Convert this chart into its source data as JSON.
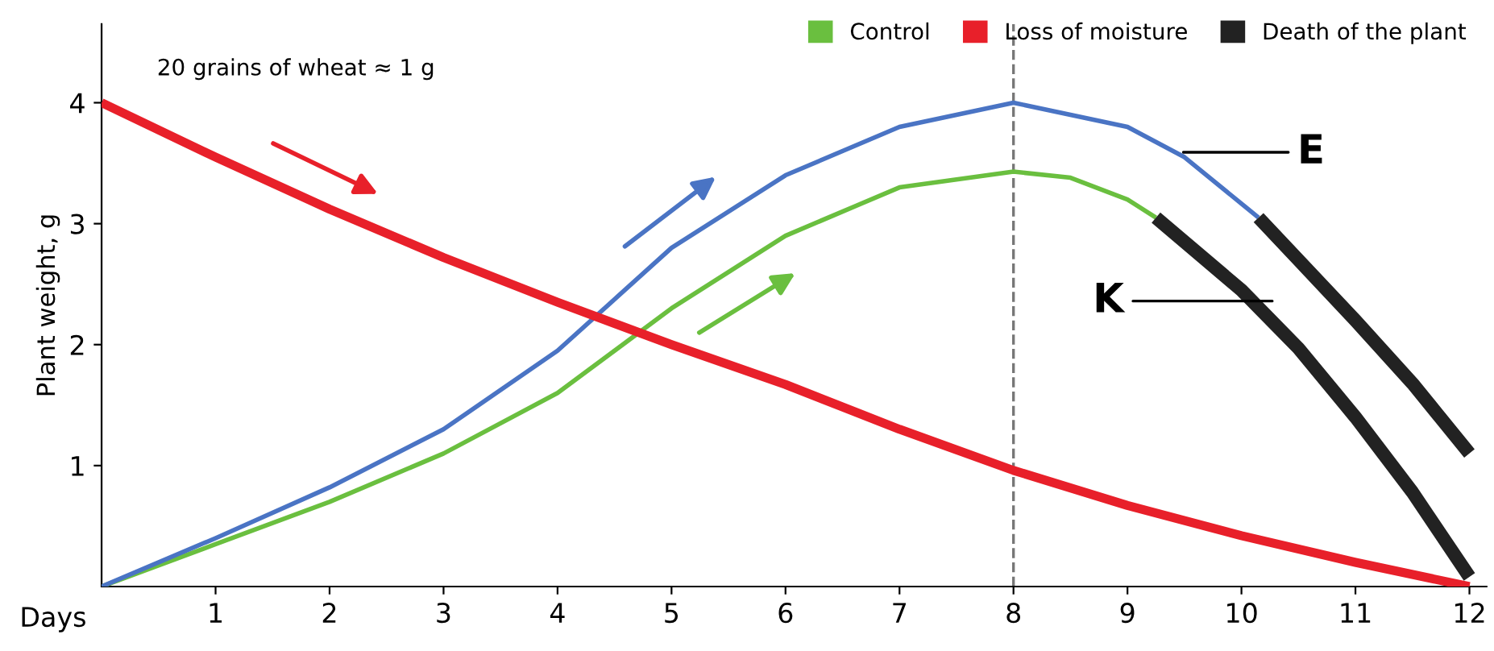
{
  "chart_data": {
    "type": "line",
    "xlabel": "Days",
    "ylabel": "Plant weight, g",
    "annotations": [
      "20 grains of wheat ≈ 1 g",
      {
        "text": "E",
        "x": 9.49,
        "y": 3.59
      },
      {
        "text": "K",
        "x": 10.27,
        "y": 2.36
      }
    ],
    "series": [
      {
        "name": "Control",
        "color": "#6abf3f",
        "x": [
          0,
          1,
          2,
          3,
          4,
          5,
          6,
          7,
          8,
          8.5,
          9,
          9.25
        ],
        "values": [
          0,
          0.35,
          0.7,
          1.1,
          1.6,
          2.3,
          2.9,
          3.3,
          3.43,
          3.38,
          3.2,
          3.05
        ]
      },
      {
        "color": "#4a74c4",
        "x": [
          0,
          1,
          2,
          3,
          4,
          5,
          6,
          7,
          8,
          9,
          9.5,
          10.15
        ],
        "values": [
          0,
          0.4,
          0.82,
          1.3,
          1.95,
          2.8,
          3.4,
          3.8,
          4.0,
          3.8,
          3.55,
          3.05
        ]
      },
      {
        "name": "Loss of moisture",
        "color": "#e8202a",
        "x": [
          0,
          1,
          2,
          3,
          4,
          5,
          6,
          7,
          8,
          9,
          10,
          11,
          12
        ],
        "values": [
          4,
          3.55,
          3.12,
          2.72,
          2.35,
          2.0,
          1.67,
          1.3,
          0.96,
          0.67,
          0.42,
          0.2,
          0
        ]
      },
      {
        "name": "Death of the plant",
        "color": "#222222",
        "x": [
          9.25,
          9.5,
          10,
          10.5,
          11,
          11.5,
          12
        ],
        "values": [
          3.05,
          2.85,
          2.45,
          1.97,
          1.4,
          0.78,
          0.08
        ]
      },
      {
        "color": "#222222",
        "x": [
          10.15,
          10.5,
          11,
          11.5,
          12
        ],
        "values": [
          3.05,
          2.7,
          2.2,
          1.68,
          1.1
        ]
      }
    ],
    "xlim": [
      0,
      12.15
    ],
    "ylim": [
      0,
      4.65
    ],
    "xticks": [
      1,
      2,
      3,
      4,
      5,
      6,
      7,
      8,
      9,
      10,
      11,
      12
    ],
    "yticks": [
      1,
      2,
      3,
      4
    ],
    "ref_lines": [
      {
        "axis": "x",
        "value": 8,
        "color": "#777777",
        "line_style": "dashed"
      }
    ],
    "grid": false,
    "legend": "top right",
    "marker": "none",
    "line_style": "solid"
  }
}
